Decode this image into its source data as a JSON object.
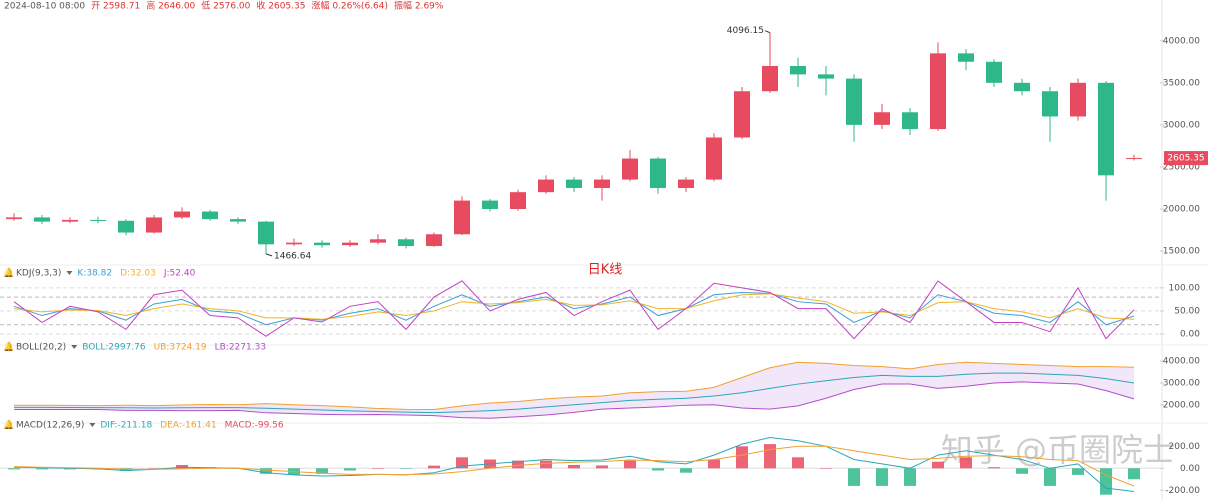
{
  "header": {
    "datetime": "2024-08-10 08:00",
    "items": [
      "开 2598.71",
      "高 2646.00",
      "低 2576.00",
      "收 2605.35",
      "涨幅 0.26%(6.64)",
      "振幅 2.69%"
    ]
  },
  "watermark": "知乎 @币圈院士",
  "chart_data": [
    {
      "type": "candlestick",
      "title": "日K线",
      "up_color": "#e84a5f",
      "down_color": "#2eb88a",
      "open": [
        1880,
        1900,
        1850,
        1870,
        1860,
        1720,
        1900,
        1970,
        1880,
        1850,
        1580,
        1600,
        1570,
        1600,
        1640,
        1560,
        1700,
        2100,
        2000,
        2200,
        2350,
        2250,
        2350,
        2600,
        2250,
        2350,
        2850,
        3400,
        3700,
        3600,
        3550,
        3000,
        3150,
        2950,
        3850,
        3750,
        3500,
        3400,
        3100,
        3500,
        2598.71
      ],
      "high": [
        1950,
        1930,
        1900,
        1910,
        1880,
        1930,
        2020,
        1990,
        1900,
        1860,
        1650,
        1630,
        1630,
        1700,
        1660,
        1720,
        2150,
        2120,
        2230,
        2400,
        2380,
        2400,
        2700,
        2620,
        2380,
        2900,
        3450,
        4096.15,
        3800,
        3700,
        3600,
        3250,
        3200,
        3980,
        3900,
        3780,
        3550,
        3450,
        3550,
        3520,
        2646
      ],
      "low": [
        1860,
        1820,
        1830,
        1830,
        1690,
        1710,
        1880,
        1860,
        1820,
        1466.64,
        1560,
        1540,
        1550,
        1580,
        1530,
        1550,
        1690,
        1970,
        1980,
        2180,
        2200,
        2100,
        2330,
        2180,
        2200,
        2330,
        2830,
        3380,
        3450,
        3350,
        2800,
        2950,
        2880,
        2930,
        3650,
        3450,
        3350,
        2800,
        3050,
        2100,
        2576
      ],
      "close": [
        1900,
        1850,
        1870,
        1860,
        1720,
        1900,
        1970,
        1880,
        1850,
        1580,
        1600,
        1570,
        1600,
        1640,
        1560,
        1700,
        2100,
        2000,
        2200,
        2350,
        2250,
        2350,
        2600,
        2250,
        2350,
        2850,
        3400,
        3700,
        3600,
        3550,
        3000,
        3150,
        2950,
        3850,
        3750,
        3500,
        3400,
        3100,
        3500,
        2400,
        2605.35
      ],
      "ylim": [
        1370,
        4318
      ],
      "yticks": [
        {
          "value": 1500,
          "label": "1500.00"
        },
        {
          "value": 2000,
          "label": "2000.00"
        },
        {
          "value": 2500,
          "label": "2500.00"
        },
        {
          "value": 3000,
          "label": "3000.00"
        },
        {
          "value": 3500,
          "label": "3500.00"
        },
        {
          "value": 4000,
          "label": "4000.00"
        }
      ]
    },
    {
      "type": "line",
      "title": "KDJ(9,3,3)",
      "ylim": [
        -13,
        117
      ],
      "levels": [
        20,
        80
      ],
      "yticks": [
        {
          "value": 0,
          "label": "0.00"
        },
        {
          "value": 50,
          "label": "50.00"
        },
        {
          "value": 100,
          "label": "100.00"
        }
      ],
      "series": [
        {
          "name": "K:38.82",
          "color": "#3a9fd8",
          "values": [
            60,
            40,
            55,
            50,
            30,
            65,
            75,
            50,
            45,
            20,
            35,
            30,
            45,
            55,
            30,
            60,
            85,
            60,
            70,
            80,
            55,
            65,
            80,
            40,
            55,
            85,
            90,
            88,
            70,
            65,
            25,
            50,
            35,
            85,
            70,
            45,
            40,
            25,
            70,
            20,
            38.82
          ]
        },
        {
          "name": "D:32.03",
          "color": "#f0b429",
          "values": [
            55,
            48,
            52,
            51,
            40,
            55,
            65,
            55,
            50,
            35,
            35,
            32,
            38,
            48,
            40,
            50,
            70,
            65,
            68,
            75,
            62,
            63,
            72,
            55,
            55,
            72,
            85,
            87,
            78,
            70,
            45,
            48,
            40,
            68,
            70,
            55,
            48,
            35,
            55,
            35,
            32.03
          ]
        },
        {
          "name": "J:52.40",
          "color": "#c041c0",
          "values": [
            70,
            25,
            60,
            48,
            10,
            85,
            95,
            40,
            35,
            -5,
            35,
            26,
            60,
            70,
            10,
            80,
            115,
            50,
            75,
            90,
            40,
            70,
            95,
            10,
            55,
            110,
            100,
            90,
            55,
            55,
            -10,
            55,
            25,
            115,
            70,
            25,
            25,
            5,
            100,
            -10,
            52.4
          ]
        }
      ]
    },
    {
      "type": "bollinger",
      "title": "BOLL(20,2)",
      "band_color": "#eddcf7",
      "ylim": [
        1300,
        4330
      ],
      "yticks": [
        {
          "value": 2000,
          "label": "2000.00"
        },
        {
          "value": 3000,
          "label": "3000.00"
        },
        {
          "value": 4000,
          "label": "4000.00"
        }
      ],
      "series": [
        {
          "name": "BOLL:2997.76",
          "color": "#2aa8b8",
          "values": [
            1880,
            1880,
            1875,
            1870,
            1860,
            1850,
            1860,
            1870,
            1870,
            1840,
            1800,
            1760,
            1720,
            1690,
            1660,
            1640,
            1680,
            1730,
            1800,
            1900,
            2000,
            2100,
            2200,
            2250,
            2300,
            2400,
            2550,
            2750,
            2950,
            3100,
            3250,
            3350,
            3300,
            3300,
            3400,
            3450,
            3450,
            3400,
            3350,
            3200,
            2997.76
          ]
        },
        {
          "name": "UB:3724.19",
          "color": "#f0a030",
          "values": [
            1980,
            1980,
            1970,
            1960,
            1980,
            1960,
            1990,
            2010,
            2000,
            2050,
            2000,
            1960,
            1900,
            1830,
            1790,
            1780,
            1950,
            2080,
            2150,
            2270,
            2350,
            2400,
            2550,
            2600,
            2620,
            2800,
            3250,
            3700,
            3950,
            3900,
            3800,
            3750,
            3650,
            3850,
            3950,
            3900,
            3850,
            3800,
            3750,
            3750,
            3724.19
          ]
        },
        {
          "name": "LB:2271.33",
          "color": "#b050c8",
          "values": [
            1780,
            1780,
            1780,
            1780,
            1740,
            1740,
            1730,
            1730,
            1740,
            1630,
            1600,
            1560,
            1540,
            1550,
            1530,
            1500,
            1410,
            1380,
            1450,
            1530,
            1650,
            1800,
            1850,
            1900,
            1980,
            2000,
            1850,
            1800,
            1950,
            2300,
            2700,
            2950,
            2950,
            2750,
            2850,
            3000,
            3050,
            3000,
            2950,
            2650,
            2271.33
          ]
        }
      ]
    },
    {
      "type": "macd",
      "title": "MACD(12,26,9)",
      "ylim": [
        -270,
        330
      ],
      "up_color": "#e84a5f",
      "down_color": "#2eb88a",
      "yticks": [
        {
          "value": -200,
          "label": "-200.00"
        },
        {
          "value": 0,
          "label": "0.00"
        },
        {
          "value": 200,
          "label": "200.00"
        }
      ],
      "series": [
        {
          "name": "DIF:-211.18",
          "color": "#2aa8b8",
          "values": [
            10,
            5,
            0,
            -5,
            -20,
            -10,
            10,
            5,
            0,
            -40,
            -60,
            -70,
            -65,
            -55,
            -60,
            -40,
            20,
            40,
            60,
            80,
            70,
            75,
            110,
            60,
            40,
            120,
            220,
            280,
            250,
            200,
            80,
            40,
            0,
            120,
            160,
            120,
            80,
            0,
            40,
            -180,
            -211.18
          ]
        },
        {
          "name": "DEA:-161.41",
          "color": "#f0a030",
          "values": [
            15,
            10,
            5,
            0,
            -8,
            -10,
            -5,
            0,
            0,
            -15,
            -30,
            -45,
            -55,
            -55,
            -58,
            -52,
            -30,
            0,
            25,
            45,
            55,
            62,
            75,
            70,
            60,
            80,
            120,
            170,
            200,
            200,
            160,
            120,
            80,
            90,
            110,
            115,
            105,
            80,
            70,
            -60,
            -161.41
          ]
        },
        {
          "name": "MACD:-99.56",
          "bars": true,
          "values": [
            -10,
            -10,
            -10,
            -10,
            -24,
            0,
            30,
            10,
            0,
            -50,
            -60,
            -50,
            -20,
            0,
            -4,
            24,
            100,
            80,
            70,
            70,
            30,
            26,
            70,
            -20,
            -40,
            80,
            200,
            220,
            100,
            0,
            -160,
            -160,
            -160,
            60,
            100,
            10,
            -50,
            -160,
            -60,
            -240,
            -99.56
          ]
        }
      ]
    }
  ]
}
